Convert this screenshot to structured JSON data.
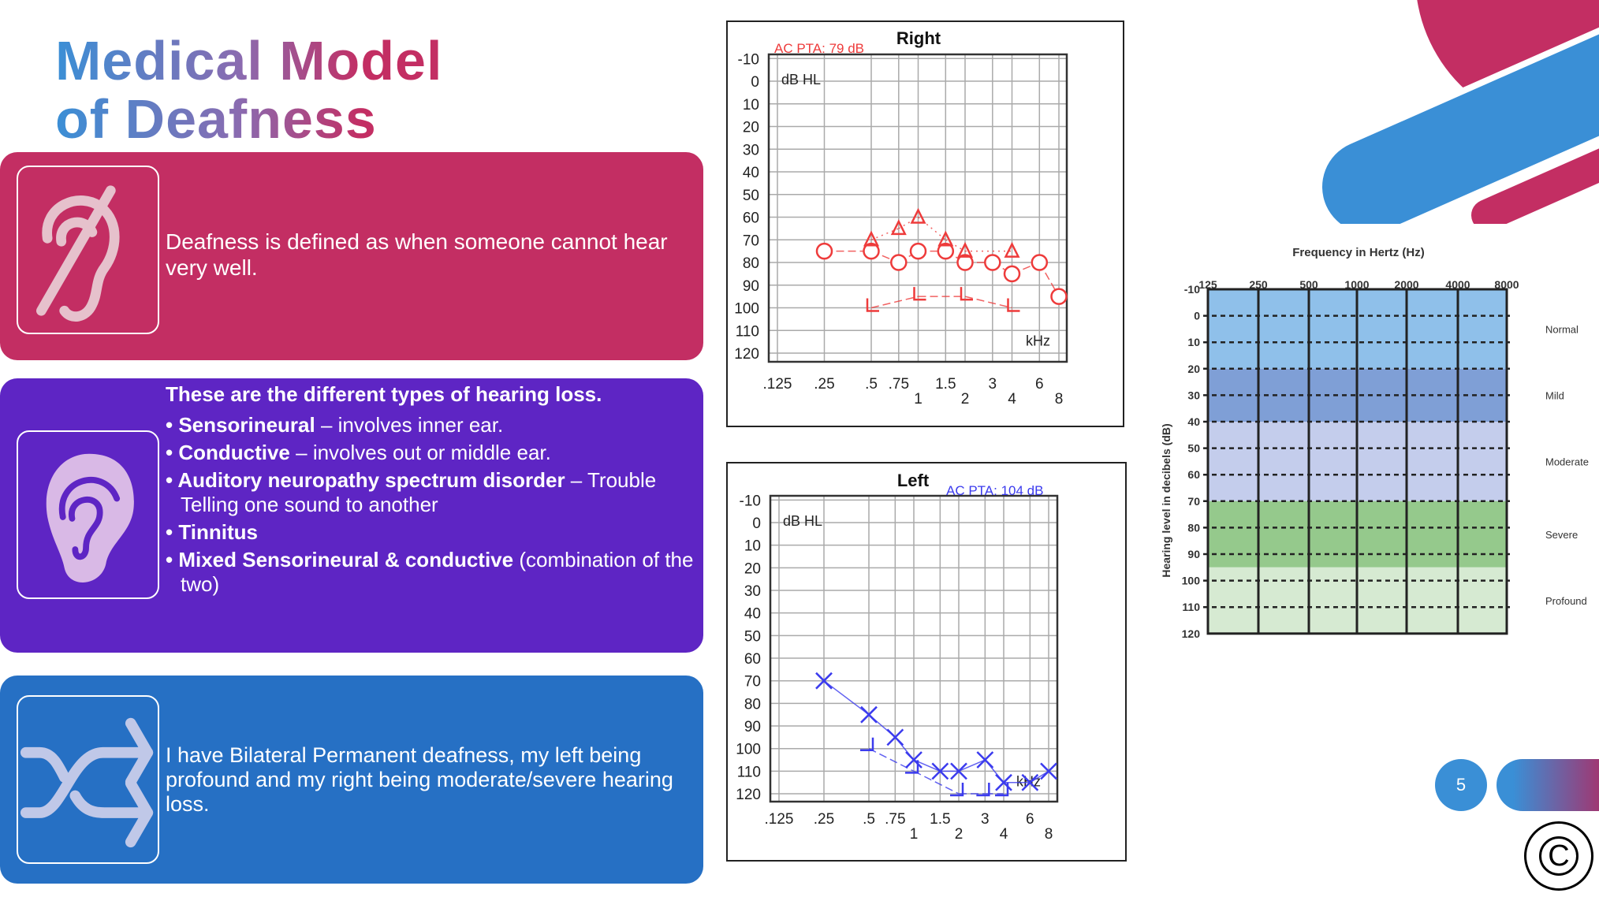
{
  "title": {
    "line1": "Medical Model",
    "line2": "of Deafness"
  },
  "panels": {
    "definition": {
      "icon": "hearing-impaired-icon",
      "text": "Deafness is defined as when someone cannot hear very well.",
      "color": "#c32e63"
    },
    "types": {
      "icon": "ear-icon",
      "color": "#5e25c4",
      "heading": "These are the different types of hearing loss.",
      "items": [
        {
          "bold": "Sensorineural",
          "rest": " – involves inner ear."
        },
        {
          "bold": "Conductive",
          "rest": " – involves out or middle ear."
        },
        {
          "bold": "Auditory neuropathy spectrum disorder",
          "rest": " – Trouble Telling one sound to another"
        },
        {
          "bold": "Tinnitus",
          "rest": ""
        },
        {
          "bold": "Mixed Sensorineural & conductive",
          "rest": " (combination of the two)"
        }
      ]
    },
    "personal": {
      "icon": "shuffle-icon",
      "text": "I have Bilateral Permanent deafness, my left being profound and my right being moderate/severe hearing loss.",
      "color": "#2670c4"
    }
  },
  "page_number": "5",
  "copyright_icon": "copyright-icon",
  "chart_data": [
    {
      "type": "line",
      "title": "Right",
      "annotation": "AC PTA: 79 dB",
      "annotation_color": "#ee3b3b",
      "ylabel": "dB HL",
      "xlabel": "kHz",
      "x_scale": "log",
      "ylim": [
        -10,
        120
      ],
      "y_inverted": true,
      "grid": true,
      "x_ticks": [
        ".125",
        ".25",
        ".5",
        ".75",
        "1",
        "1.5",
        "2",
        "3",
        "4",
        "6",
        "8"
      ],
      "x_tick_values": [
        0.125,
        0.25,
        0.5,
        0.75,
        1,
        1.5,
        2,
        3,
        4,
        6,
        8
      ],
      "y_ticks": [
        -10,
        0,
        10,
        20,
        30,
        40,
        50,
        60,
        70,
        80,
        90,
        100,
        110,
        120
      ],
      "color": "#ee3b3b",
      "series": [
        {
          "marker": "circle",
          "x": [
            0.25,
            0.5,
            0.75,
            1,
            1.5,
            2,
            3,
            4,
            6,
            8
          ],
          "y": [
            75,
            75,
            80,
            75,
            75,
            80,
            80,
            85,
            80,
            95
          ]
        },
        {
          "marker": "triangle",
          "x": [
            0.5,
            0.75,
            1,
            1.5,
            2,
            4
          ],
          "y": [
            70,
            65,
            60,
            70,
            75,
            75
          ]
        },
        {
          "marker": "bracket-right",
          "x": [
            0.5,
            1,
            2,
            4
          ],
          "y": [
            100,
            95,
            95,
            100
          ]
        }
      ]
    },
    {
      "type": "line",
      "title": "Left",
      "annotation": "AC PTA: 104 dB",
      "annotation_color": "#3b3bee",
      "ylabel": "dB HL",
      "xlabel": "kHz",
      "x_scale": "log",
      "ylim": [
        -10,
        120
      ],
      "y_inverted": true,
      "grid": true,
      "x_ticks": [
        ".125",
        ".25",
        ".5",
        ".75",
        "1",
        "1.5",
        "2",
        "3",
        "4",
        "6",
        "8"
      ],
      "x_tick_values": [
        0.125,
        0.25,
        0.5,
        0.75,
        1,
        1.5,
        2,
        3,
        4,
        6,
        8
      ],
      "y_ticks": [
        -10,
        0,
        10,
        20,
        30,
        40,
        50,
        60,
        70,
        80,
        90,
        100,
        110,
        120
      ],
      "color": "#3b3bee",
      "series": [
        {
          "marker": "cross",
          "x": [
            0.25,
            0.5,
            0.75,
            1,
            1.5,
            2,
            3,
            4,
            6,
            8
          ],
          "y": [
            70,
            85,
            95,
            105,
            110,
            110,
            105,
            115,
            115,
            110
          ]
        },
        {
          "marker": "bracket-left",
          "x": [
            0.5,
            1,
            2,
            3,
            4
          ],
          "y": [
            100,
            110,
            120,
            120,
            120
          ]
        }
      ]
    },
    {
      "type": "area",
      "title": "Frequency in Hertz (Hz)",
      "ylabel": "Hearing level in decibels (dB)",
      "x_ticks": [
        "125",
        "250",
        "500",
        "1000",
        "2000",
        "4000",
        "8000"
      ],
      "y_ticks": [
        -10,
        0,
        10,
        20,
        30,
        40,
        50,
        60,
        70,
        80,
        90,
        100,
        110,
        120
      ],
      "ylim": [
        -10,
        120
      ],
      "y_inverted": true,
      "grid": "dashed",
      "bands": [
        {
          "label": "Normal",
          "from": -10,
          "to": 20,
          "color": "#8fc0ea"
        },
        {
          "label": "Mild",
          "from": 20,
          "to": 40,
          "color": "#7f9fd6"
        },
        {
          "label": "Moderate",
          "from": 40,
          "to": 70,
          "color": "#c4cdec"
        },
        {
          "label": "Severe",
          "from": 70,
          "to": 95,
          "color": "#95c98c"
        },
        {
          "label": "Profound",
          "from": 95,
          "to": 120,
          "color": "#d6ead2"
        }
      ]
    }
  ]
}
